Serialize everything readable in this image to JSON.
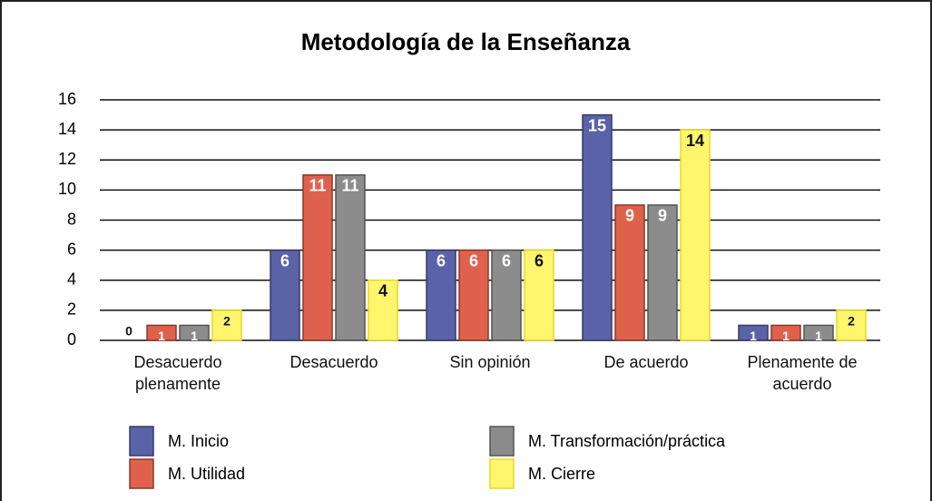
{
  "chart_data": {
    "type": "bar",
    "title": "Metodología de la Enseñanza",
    "categories": [
      "Desacuerdo plenamente",
      "Desacuerdo",
      "Sin opinión",
      "De acuerdo",
      "Plenamente de acuerdo"
    ],
    "series": [
      {
        "name": "M. Inicio",
        "color": "#5a62a8",
        "values": [
          0,
          6,
          6,
          15,
          1
        ]
      },
      {
        "name": "M. Utilidad",
        "color": "#e0614b",
        "values": [
          1,
          11,
          6,
          9,
          1
        ]
      },
      {
        "name": "M. Transformación/práctica",
        "color": "#8c8c8c",
        "values": [
          1,
          11,
          6,
          9,
          1
        ]
      },
      {
        "name": "M. Cierre",
        "color": "#fff66e",
        "values": [
          2,
          4,
          6,
          14,
          2
        ]
      }
    ],
    "ylim": [
      0,
      16
    ],
    "yticks": [
      0,
      2,
      4,
      6,
      8,
      10,
      12,
      14,
      16
    ],
    "grid": true
  }
}
